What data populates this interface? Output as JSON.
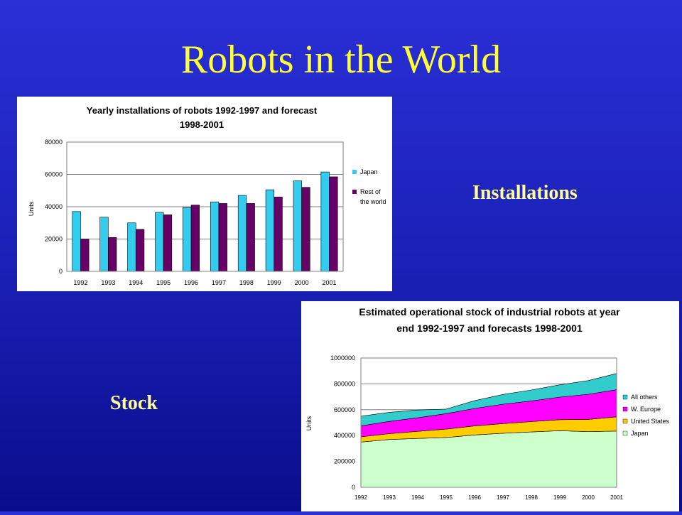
{
  "slide": {
    "title": "Robots in the World",
    "label_installations": "Installations",
    "label_stock": "Stock"
  },
  "colors": {
    "japan_bar": "#33ccee",
    "rest_bar": "#660066",
    "area_all_others": "#33cccc",
    "area_w_europe": "#ff00ff",
    "area_us": "#ffcc00",
    "area_japan": "#ccffcc"
  },
  "chart_data": [
    {
      "type": "bar",
      "title": "Yearly installations of robots 1992-1997 and forecast",
      "subtitle": "1998-2001",
      "ylabel": "Units",
      "ylim": [
        0,
        80000
      ],
      "yticks": [
        "0",
        "20000",
        "40000",
        "60000",
        "80000"
      ],
      "categories": [
        "1992",
        "1993",
        "1994",
        "1995",
        "1996",
        "1997",
        "1998",
        "1999",
        "2000",
        "2001"
      ],
      "series": [
        {
          "name": "Japan",
          "values": [
            37000,
            33500,
            30000,
            36500,
            39500,
            43000,
            47000,
            50500,
            56000,
            61500
          ]
        },
        {
          "name": "Rest of the world",
          "values": [
            20000,
            21000,
            26000,
            35000,
            41000,
            42000,
            42000,
            46000,
            52000,
            58500
          ]
        }
      ],
      "legend_lines": {
        "japan": "Japan",
        "rest_1": "Rest of",
        "rest_2": "the world"
      },
      "legend": "right"
    },
    {
      "type": "area",
      "title": "Estimated operational stock of industrial robots at year",
      "subtitle": "end 1992-1997 and forecasts 1998-2001",
      "ylabel": "Units",
      "ylim": [
        0,
        1000000
      ],
      "yticks": [
        "0",
        "200000",
        "400000",
        "600000",
        "800000",
        "1000000"
      ],
      "categories": [
        "1992",
        "1993",
        "1994",
        "1995",
        "1996",
        "1997",
        "1998",
        "1999",
        "2000",
        "2001"
      ],
      "stacked": true,
      "series": [
        {
          "name": "Japan",
          "values": [
            350000,
            370000,
            378000,
            385000,
            405000,
            418000,
            428000,
            438000,
            430000,
            435000
          ]
        },
        {
          "name": "United States",
          "values": [
            40000,
            45000,
            55000,
            65000,
            70000,
            75000,
            80000,
            85000,
            95000,
            110000
          ]
        },
        {
          "name": "W. Europe",
          "values": [
            85000,
            95000,
            105000,
            120000,
            135000,
            150000,
            160000,
            175000,
            195000,
            210000
          ]
        },
        {
          "name": "All others",
          "values": [
            75000,
            70000,
            60000,
            35000,
            60000,
            75000,
            85000,
            95000,
            105000,
            125000
          ]
        }
      ],
      "legend_order": [
        "All others",
        "W. Europe",
        "United States",
        "Japan"
      ],
      "legend": "right"
    }
  ]
}
